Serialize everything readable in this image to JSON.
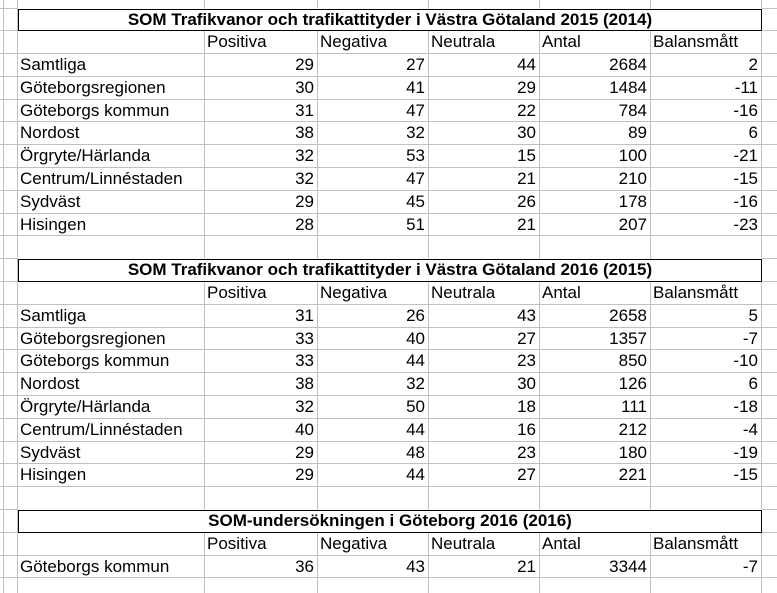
{
  "tables": [
    {
      "title": "SOM Trafikvanor och trafikattityder i Västra Götaland 2015 (2014)",
      "columns": [
        "Positiva",
        "Negativa",
        "Neutrala",
        "Antal",
        "Balansmått"
      ],
      "rows": [
        {
          "label": "Samtliga",
          "values": [
            29,
            27,
            44,
            2684,
            2
          ]
        },
        {
          "label": "Göteborgsregionen",
          "values": [
            30,
            41,
            29,
            1484,
            -11
          ]
        },
        {
          "label": "Göteborgs kommun",
          "values": [
            31,
            47,
            22,
            784,
            -16
          ]
        },
        {
          "label": "Nordost",
          "values": [
            38,
            32,
            30,
            89,
            6
          ]
        },
        {
          "label": "Örgryte/Härlanda",
          "values": [
            32,
            53,
            15,
            100,
            -21
          ]
        },
        {
          "label": "Centrum/Linnéstaden",
          "values": [
            32,
            47,
            21,
            210,
            -15
          ]
        },
        {
          "label": "Sydväst",
          "values": [
            29,
            45,
            26,
            178,
            -16
          ]
        },
        {
          "label": "Hisingen",
          "values": [
            28,
            51,
            21,
            207,
            -23
          ]
        }
      ]
    },
    {
      "title": "SOM Trafikvanor och trafikattityder i Västra Götaland 2016 (2015)",
      "columns": [
        "Positiva",
        "Negativa",
        "Neutrala",
        "Antal",
        "Balansmått"
      ],
      "rows": [
        {
          "label": "Samtliga",
          "values": [
            31,
            26,
            43,
            2658,
            5
          ]
        },
        {
          "label": "Göteborgsregionen",
          "values": [
            33,
            40,
            27,
            1357,
            -7
          ]
        },
        {
          "label": "Göteborgs kommun",
          "values": [
            33,
            44,
            23,
            850,
            -10
          ]
        },
        {
          "label": "Nordost",
          "values": [
            38,
            32,
            30,
            126,
            6
          ]
        },
        {
          "label": "Örgryte/Härlanda",
          "values": [
            32,
            50,
            18,
            111,
            -18
          ]
        },
        {
          "label": "Centrum/Linnéstaden",
          "values": [
            40,
            44,
            16,
            212,
            -4
          ]
        },
        {
          "label": "Sydväst",
          "values": [
            29,
            48,
            23,
            180,
            -19
          ]
        },
        {
          "label": "Hisingen",
          "values": [
            29,
            44,
            27,
            221,
            -15
          ]
        }
      ]
    },
    {
      "title": "SOM-undersökningen i Göteborg 2016 (2016)",
      "columns": [
        "Positiva",
        "Negativa",
        "Neutrala",
        "Antal",
        "Balansmått"
      ],
      "rows": [
        {
          "label": "Göteborgs kommun",
          "values": [
            36,
            43,
            21,
            3344,
            -7
          ]
        }
      ]
    }
  ],
  "colors": {
    "gridline": "#c0c0c0",
    "table_border": "#000000",
    "text": "#000000",
    "background": "#ffffff"
  }
}
